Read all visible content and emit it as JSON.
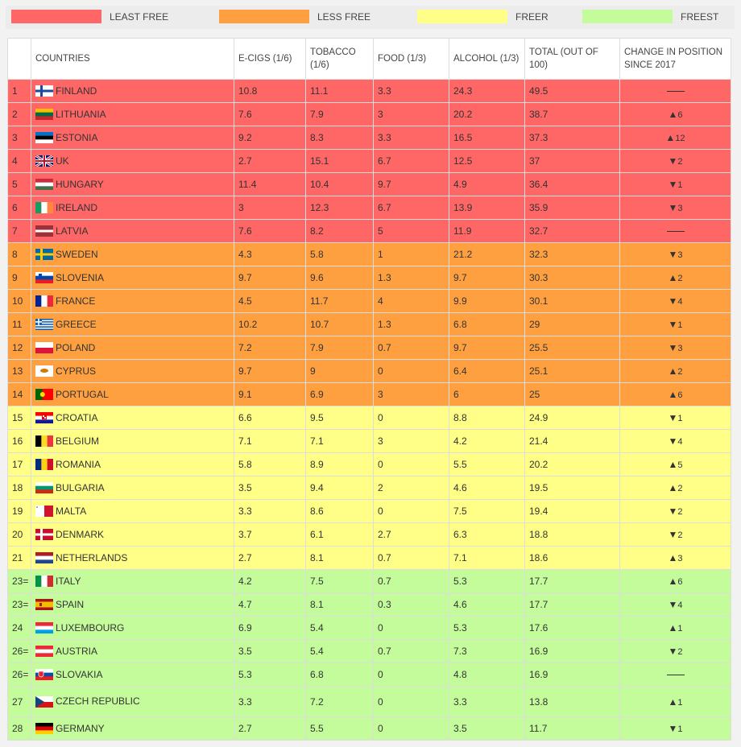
{
  "legend": [
    {
      "label": "LEAST FREE",
      "color": "#ff6666"
    },
    {
      "label": "LESS FREE",
      "color": "#ffa040"
    },
    {
      "label": "FREER",
      "color": "#ffff88"
    },
    {
      "label": "FREEST",
      "color": "#c4fc9c"
    }
  ],
  "headers": {
    "rank": "",
    "countries": "COUNTRIES",
    "ecigs": "E-CIGS (1/6)",
    "tobacco": "TOBACCO (1/6)",
    "food": "FOOD (1/3)",
    "alcohol": "ALCOHOL (1/3)",
    "total": "TOTAL (OUT OF 100)",
    "change": "CHANGE IN POSITION SINCE 2017"
  },
  "rows": [
    {
      "rank": "1",
      "country": "FINLAND",
      "ecigs": "10.8",
      "tobacco": "11.1",
      "food": "3.3",
      "alcohol": "24.3",
      "total": "49.5",
      "dir": "none",
      "change": "",
      "group": "least"
    },
    {
      "rank": "2",
      "country": "LITHUANIA",
      "ecigs": "7.6",
      "tobacco": "7.9",
      "food": "3",
      "alcohol": "20.2",
      "total": "38.7",
      "dir": "up",
      "change": "6",
      "group": "least"
    },
    {
      "rank": "3",
      "country": "ESTONIA",
      "ecigs": "9.2",
      "tobacco": "8.3",
      "food": "3.3",
      "alcohol": "16.5",
      "total": "37.3",
      "dir": "up",
      "change": "12",
      "group": "least"
    },
    {
      "rank": "4",
      "country": "UK",
      "ecigs": "2.7",
      "tobacco": "15.1",
      "food": "6.7",
      "alcohol": "12.5",
      "total": "37",
      "dir": "down",
      "change": "2",
      "group": "least"
    },
    {
      "rank": "5",
      "country": "HUNGARY",
      "ecigs": "11.4",
      "tobacco": "10.4",
      "food": "9.7",
      "alcohol": "4.9",
      "total": "36.4",
      "dir": "down",
      "change": "1",
      "group": "least"
    },
    {
      "rank": "6",
      "country": "IRELAND",
      "ecigs": "3",
      "tobacco": "12.3",
      "food": "6.7",
      "alcohol": "13.9",
      "total": "35.9",
      "dir": "down",
      "change": "3",
      "group": "least"
    },
    {
      "rank": "7",
      "country": "LATVIA",
      "ecigs": "7.6",
      "tobacco": "8.2",
      "food": "5",
      "alcohol": "11.9",
      "total": "32.7",
      "dir": "none",
      "change": "",
      "group": "least"
    },
    {
      "rank": "8",
      "country": "SWEDEN",
      "ecigs": "4.3",
      "tobacco": "5.8",
      "food": "1",
      "alcohol": "21.2",
      "total": "32.3",
      "dir": "down",
      "change": "3",
      "group": "less"
    },
    {
      "rank": "9",
      "country": "SLOVENIA",
      "ecigs": "9.7",
      "tobacco": "9.6",
      "food": "1.3",
      "alcohol": "9.7",
      "total": "30.3",
      "dir": "up",
      "change": "2",
      "group": "less"
    },
    {
      "rank": "10",
      "country": "FRANCE",
      "ecigs": "4.5",
      "tobacco": "11.7",
      "food": "4",
      "alcohol": "9.9",
      "total": "30.1",
      "dir": "down",
      "change": "4",
      "group": "less"
    },
    {
      "rank": "11",
      "country": "GREECE",
      "ecigs": "10.2",
      "tobacco": "10.7",
      "food": "1.3",
      "alcohol": "6.8",
      "total": "29",
      "dir": "down",
      "change": "1",
      "group": "less"
    },
    {
      "rank": "12",
      "country": "POLAND",
      "ecigs": "7.2",
      "tobacco": "7.9",
      "food": "0.7",
      "alcohol": "9.7",
      "total": "25.5",
      "dir": "down",
      "change": "3",
      "group": "less"
    },
    {
      "rank": "13",
      "country": "CYPRUS",
      "ecigs": "9.7",
      "tobacco": "9",
      "food": "0",
      "alcohol": "6.4",
      "total": "25.1",
      "dir": "up",
      "change": "2",
      "group": "less"
    },
    {
      "rank": "14",
      "country": "PORTUGAL",
      "ecigs": "9.1",
      "tobacco": "6.9",
      "food": "3",
      "alcohol": "6",
      "total": "25",
      "dir": "up",
      "change": "6",
      "group": "less"
    },
    {
      "rank": "15",
      "country": "CROATIA",
      "ecigs": "6.6",
      "tobacco": "9.5",
      "food": "0",
      "alcohol": "8.8",
      "total": "24.9",
      "dir": "down",
      "change": "1",
      "group": "freer"
    },
    {
      "rank": "16",
      "country": "BELGIUM",
      "ecigs": "7.1",
      "tobacco": "7.1",
      "food": "3",
      "alcohol": "4.2",
      "total": "21.4",
      "dir": "down",
      "change": "4",
      "group": "freer"
    },
    {
      "rank": "17",
      "country": "ROMANIA",
      "ecigs": "5.8",
      "tobacco": "8.9",
      "food": "0",
      "alcohol": "5.5",
      "total": "20.2",
      "dir": "up",
      "change": "5",
      "group": "freer"
    },
    {
      "rank": "18",
      "country": "BULGARIA",
      "ecigs": "3.5",
      "tobacco": "9.4",
      "food": "2",
      "alcohol": "4.6",
      "total": "19.5",
      "dir": "up",
      "change": "2",
      "group": "freer"
    },
    {
      "rank": "19",
      "country": "MALTA",
      "ecigs": "3.3",
      "tobacco": "8.6",
      "food": "0",
      "alcohol": "7.5",
      "total": "19.4",
      "dir": "down",
      "change": "2",
      "group": "freer"
    },
    {
      "rank": "20",
      "country": "DENMARK",
      "ecigs": "3.7",
      "tobacco": "6.1",
      "food": "2.7",
      "alcohol": "6.3",
      "total": "18.8",
      "dir": "down",
      "change": "2",
      "group": "freer"
    },
    {
      "rank": "21",
      "country": "NETHERLANDS",
      "ecigs": "2.7",
      "tobacco": "8.1",
      "food": "0.7",
      "alcohol": "7.1",
      "total": "18.6",
      "dir": "up",
      "change": "3",
      "group": "freer"
    },
    {
      "rank": "23=",
      "country": "ITALY",
      "ecigs": "4.2",
      "tobacco": "7.5",
      "food": "0.7",
      "alcohol": "5.3",
      "total": "17.7",
      "dir": "up",
      "change": "6",
      "group": "freest"
    },
    {
      "rank": "23=",
      "country": "SPAIN",
      "ecigs": "4.7",
      "tobacco": "8.1",
      "food": "0.3",
      "alcohol": "4.6",
      "total": "17.7",
      "dir": "down",
      "change": "4",
      "group": "freest"
    },
    {
      "rank": "24",
      "country": "LUXEMBOURG",
      "ecigs": "6.9",
      "tobacco": "5.4",
      "food": "0",
      "alcohol": "5.3",
      "total": "17.6",
      "dir": "up",
      "change": "1",
      "group": "freest"
    },
    {
      "rank": "26=",
      "country": "AUSTRIA",
      "ecigs": "3.5",
      "tobacco": "5.4",
      "food": "0.7",
      "alcohol": "7.3",
      "total": "16.9",
      "dir": "down",
      "change": "2",
      "group": "freest"
    },
    {
      "rank": "26=",
      "country": "SLOVAKIA",
      "ecigs": "5.3",
      "tobacco": "6.8",
      "food": "0",
      "alcohol": "4.8",
      "total": "16.9",
      "dir": "none",
      "change": "",
      "group": "freest"
    },
    {
      "rank": "27",
      "country": "CZECH REPUBLIC",
      "ecigs": "3.3",
      "tobacco": "7.2",
      "food": "0",
      "alcohol": "3.3",
      "total": "13.8",
      "dir": "up",
      "change": "1",
      "group": "freest"
    },
    {
      "rank": "28",
      "country": "GERMANY",
      "ecigs": "2.7",
      "tobacco": "5.5",
      "food": "0",
      "alcohol": "3.5",
      "total": "11.7",
      "dir": "down",
      "change": "1",
      "group": "freest"
    }
  ]
}
